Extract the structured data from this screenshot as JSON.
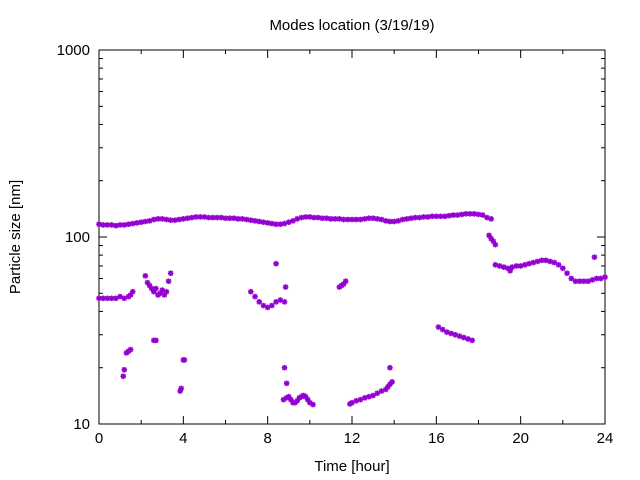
{
  "chart_data": {
    "type": "scatter",
    "title": "Modes location (3/19/19)",
    "xlabel": "Time [hour]",
    "ylabel": "Particle size [nm]",
    "xlim": [
      0,
      24
    ],
    "ylim": [
      10,
      1000
    ],
    "yscale": "log",
    "x_ticks": [
      0,
      4,
      8,
      12,
      16,
      20,
      24
    ],
    "x_tick_labels": [
      "0",
      "4",
      "8",
      "12",
      "16",
      "20",
      "24"
    ],
    "y_ticks": [
      10,
      100,
      1000
    ],
    "y_tick_labels": [
      "10",
      "100",
      "1000"
    ],
    "grid": false,
    "legend": "none",
    "marker_color": "#9400d3",
    "series": [
      {
        "points": [
          [
            0,
            117
          ],
          [
            0.2,
            116
          ],
          [
            0.4,
            116
          ],
          [
            0.6,
            116
          ],
          [
            0.8,
            115
          ],
          [
            1.0,
            116
          ],
          [
            1.2,
            116
          ],
          [
            1.4,
            117
          ],
          [
            1.6,
            118
          ],
          [
            1.8,
            119
          ],
          [
            2.0,
            120
          ],
          [
            2.2,
            121
          ],
          [
            2.4,
            122
          ],
          [
            2.6,
            124
          ],
          [
            2.8,
            125
          ],
          [
            3.0,
            125
          ],
          [
            3.2,
            124
          ],
          [
            3.4,
            123
          ],
          [
            3.6,
            123
          ],
          [
            3.8,
            124
          ],
          [
            4.0,
            125
          ],
          [
            4.2,
            126
          ],
          [
            4.4,
            127
          ],
          [
            4.6,
            128
          ],
          [
            4.8,
            128
          ],
          [
            5.0,
            128
          ],
          [
            5.2,
            127
          ],
          [
            5.4,
            127
          ],
          [
            5.6,
            127
          ],
          [
            5.8,
            127
          ],
          [
            6.0,
            126
          ],
          [
            6.2,
            126
          ],
          [
            6.4,
            126
          ],
          [
            6.6,
            125
          ],
          [
            6.8,
            125
          ],
          [
            7.0,
            124
          ],
          [
            7.2,
            123
          ],
          [
            7.4,
            122
          ],
          [
            7.6,
            121
          ],
          [
            7.8,
            120
          ],
          [
            8.0,
            119
          ],
          [
            8.2,
            118
          ],
          [
            8.4,
            117
          ],
          [
            8.6,
            117
          ],
          [
            8.8,
            118
          ],
          [
            9.0,
            120
          ],
          [
            9.2,
            122
          ],
          [
            9.4,
            125
          ],
          [
            9.6,
            127
          ],
          [
            9.8,
            128
          ],
          [
            10.0,
            128
          ],
          [
            10.2,
            127
          ],
          [
            10.4,
            127
          ],
          [
            10.6,
            126
          ],
          [
            10.8,
            126
          ],
          [
            11.0,
            125
          ],
          [
            11.2,
            125
          ],
          [
            11.4,
            125
          ],
          [
            11.6,
            124
          ],
          [
            11.8,
            124
          ],
          [
            12.0,
            124
          ],
          [
            12.2,
            124
          ],
          [
            12.4,
            124
          ],
          [
            12.6,
            125
          ],
          [
            12.8,
            126
          ],
          [
            13.0,
            126
          ],
          [
            13.2,
            125
          ],
          [
            13.4,
            124
          ],
          [
            13.6,
            122
          ],
          [
            13.8,
            121
          ],
          [
            14.0,
            121
          ],
          [
            14.2,
            122
          ],
          [
            14.4,
            124
          ],
          [
            14.6,
            125
          ],
          [
            14.8,
            126
          ],
          [
            15.0,
            127
          ],
          [
            15.2,
            127
          ],
          [
            15.4,
            128
          ],
          [
            15.6,
            128
          ],
          [
            15.8,
            129
          ],
          [
            16.0,
            129
          ],
          [
            16.2,
            129
          ],
          [
            16.4,
            129
          ],
          [
            16.6,
            130
          ],
          [
            16.8,
            131
          ],
          [
            17.0,
            131
          ],
          [
            17.2,
            132
          ],
          [
            17.4,
            133
          ],
          [
            17.6,
            133
          ],
          [
            17.8,
            133
          ],
          [
            18.0,
            132
          ],
          [
            18.2,
            131
          ],
          [
            18.4,
            127
          ],
          [
            18.6,
            125
          ],
          [
            18.5,
            102
          ],
          [
            18.6,
            98
          ],
          [
            18.7,
            95
          ],
          [
            18.8,
            91
          ],
          [
            18.8,
            71
          ],
          [
            19.0,
            70
          ],
          [
            19.2,
            69
          ],
          [
            19.4,
            68
          ],
          [
            19.5,
            66
          ],
          [
            19.6,
            69
          ],
          [
            19.8,
            70
          ],
          [
            20.0,
            70
          ],
          [
            20.2,
            71
          ],
          [
            20.4,
            72
          ],
          [
            20.6,
            73
          ],
          [
            20.8,
            74
          ],
          [
            21.0,
            75
          ],
          [
            21.2,
            75
          ],
          [
            21.4,
            74
          ],
          [
            21.6,
            73
          ],
          [
            21.8,
            71
          ],
          [
            22.0,
            68
          ],
          [
            22.2,
            64
          ],
          [
            22.4,
            60
          ],
          [
            22.6,
            58
          ],
          [
            22.8,
            58
          ],
          [
            23.0,
            58
          ],
          [
            23.2,
            58
          ],
          [
            23.4,
            59
          ],
          [
            23.6,
            60
          ],
          [
            23.8,
            60
          ],
          [
            24.0,
            61
          ],
          [
            23.5,
            78
          ],
          [
            0,
            47
          ],
          [
            0.2,
            47
          ],
          [
            0.4,
            47
          ],
          [
            0.6,
            47
          ],
          [
            0.8,
            47
          ],
          [
            1.0,
            48
          ],
          [
            1.2,
            47
          ],
          [
            1.4,
            48
          ],
          [
            1.5,
            49
          ],
          [
            1.6,
            51
          ],
          [
            1.15,
            18
          ],
          [
            1.2,
            19.5
          ],
          [
            1.3,
            24
          ],
          [
            1.4,
            24.5
          ],
          [
            1.5,
            25
          ],
          [
            2.2,
            62
          ],
          [
            2.3,
            57
          ],
          [
            2.4,
            55
          ],
          [
            2.5,
            53
          ],
          [
            2.6,
            51
          ],
          [
            2.7,
            53
          ],
          [
            2.8,
            49
          ],
          [
            2.9,
            50
          ],
          [
            3.0,
            52
          ],
          [
            3.1,
            49
          ],
          [
            3.2,
            51
          ],
          [
            3.3,
            58
          ],
          [
            3.4,
            64
          ],
          [
            2.6,
            28
          ],
          [
            2.7,
            28
          ],
          [
            3.85,
            15
          ],
          [
            3.9,
            15.5
          ],
          [
            4.0,
            22
          ],
          [
            4.05,
            22
          ],
          [
            7.2,
            51
          ],
          [
            7.4,
            48
          ],
          [
            7.6,
            45
          ],
          [
            7.8,
            43
          ],
          [
            8.0,
            42
          ],
          [
            8.2,
            43
          ],
          [
            8.4,
            45
          ],
          [
            8.6,
            46
          ],
          [
            8.8,
            45
          ],
          [
            8.85,
            54
          ],
          [
            8.4,
            72
          ],
          [
            8.8,
            20
          ],
          [
            8.9,
            16.5
          ],
          [
            8.75,
            13.5
          ],
          [
            8.9,
            13.8
          ],
          [
            9.0,
            14
          ],
          [
            9.1,
            13.5
          ],
          [
            9.2,
            13
          ],
          [
            9.3,
            13
          ],
          [
            9.4,
            13.3
          ],
          [
            9.5,
            13.8
          ],
          [
            9.6,
            14
          ],
          [
            9.7,
            14.2
          ],
          [
            9.8,
            14
          ],
          [
            9.9,
            13.5
          ],
          [
            10.0,
            13
          ],
          [
            10.15,
            12.7
          ],
          [
            11.4,
            54
          ],
          [
            11.5,
            55
          ],
          [
            11.6,
            56
          ],
          [
            11.7,
            58
          ],
          [
            11.9,
            12.8
          ],
          [
            12.0,
            13
          ],
          [
            12.2,
            13.3
          ],
          [
            12.4,
            13.5
          ],
          [
            12.6,
            13.8
          ],
          [
            12.8,
            14
          ],
          [
            13.0,
            14.2
          ],
          [
            13.2,
            14.6
          ],
          [
            13.4,
            15
          ],
          [
            13.6,
            15.3
          ],
          [
            13.7,
            15.8
          ],
          [
            13.8,
            16.3
          ],
          [
            13.9,
            16.8
          ],
          [
            13.8,
            20
          ],
          [
            16.1,
            33
          ],
          [
            16.3,
            32
          ],
          [
            16.5,
            31
          ],
          [
            16.7,
            30.5
          ],
          [
            16.9,
            30
          ],
          [
            17.1,
            29.5
          ],
          [
            17.3,
            29
          ],
          [
            17.5,
            28.5
          ],
          [
            17.7,
            28
          ]
        ]
      }
    ]
  }
}
